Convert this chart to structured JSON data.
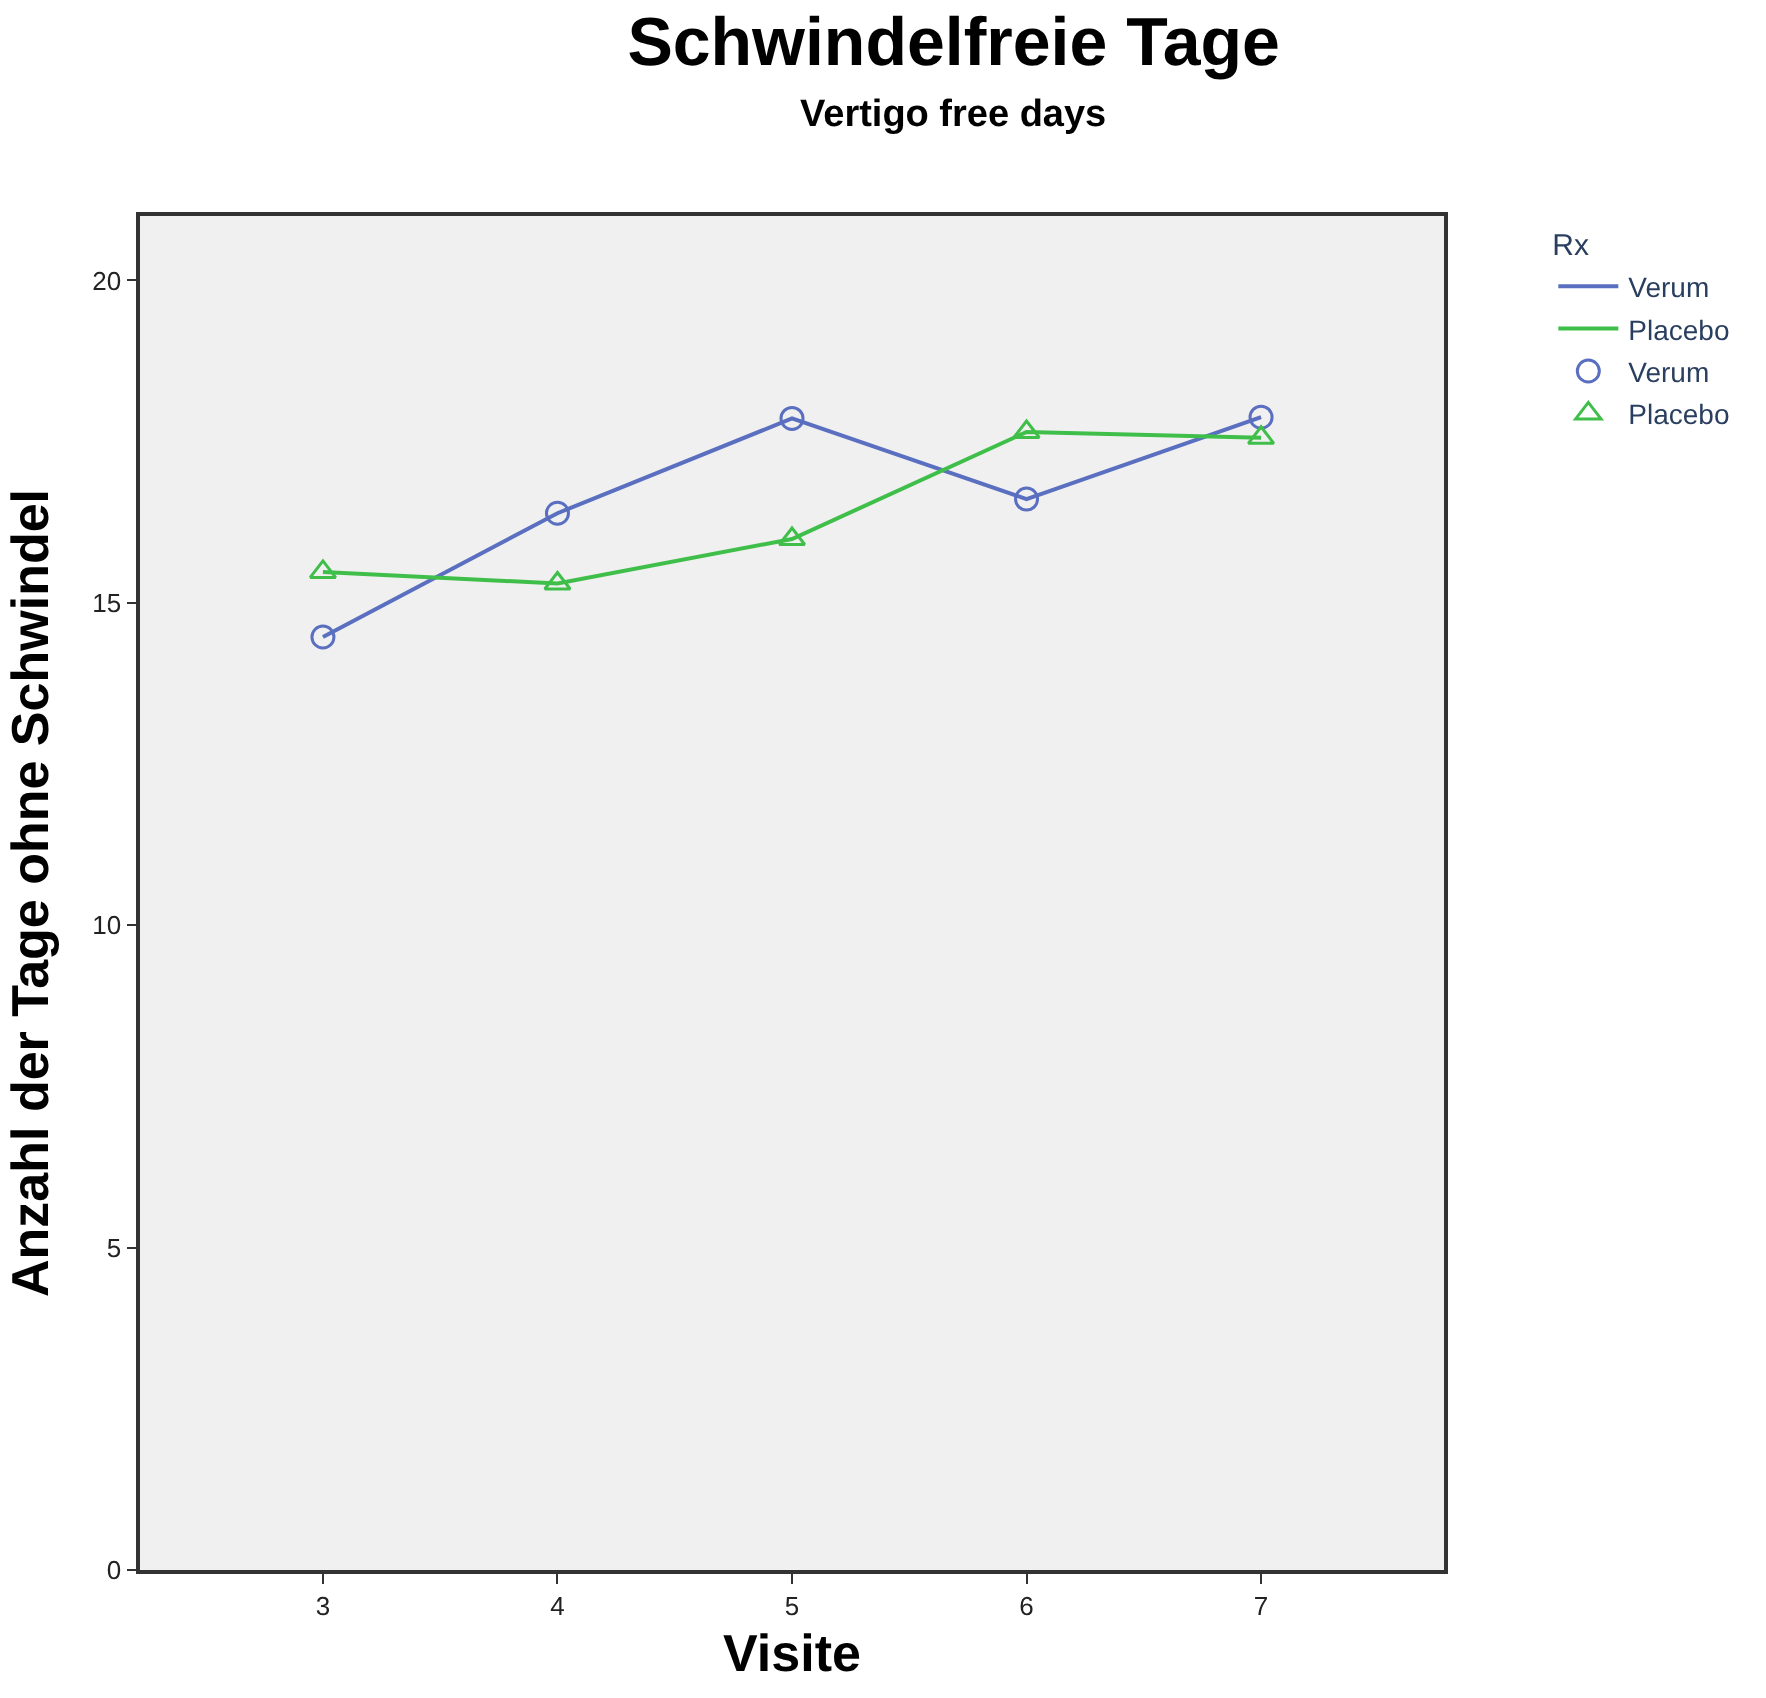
{
  "chart_data": {
    "type": "line",
    "title": "Schwindelfreie Tage",
    "subtitle": "Vertigo free days",
    "xlabel": "Visite",
    "ylabel": "Anzahl der Tage ohne Schwindel",
    "legend_title": "Rx",
    "legend": "right",
    "grid": false,
    "x": [
      3,
      4,
      5,
      6,
      7
    ],
    "xlim": [
      2.22,
      7.78
    ],
    "xticks": [
      3,
      4,
      5,
      6,
      7
    ],
    "ylim": [
      0,
      21
    ],
    "yticks": [
      0,
      5,
      10,
      15,
      20
    ],
    "series": [
      {
        "name": "Verum",
        "marker": "none",
        "color": "#5a6fc0",
        "values": [
          14.47,
          16.39,
          17.86,
          16.61,
          17.88
        ]
      },
      {
        "name": "Placebo",
        "marker": "none",
        "color": "#3fbf4a",
        "values": [
          15.48,
          15.3,
          15.99,
          17.65,
          17.56
        ]
      },
      {
        "name": "Verum",
        "type": "scatter",
        "marker": "circle",
        "color": "#5a6fc0",
        "values": [
          14.47,
          16.39,
          17.86,
          16.61,
          17.88
        ]
      },
      {
        "name": "Placebo",
        "type": "scatter",
        "marker": "triangle",
        "color": "#3fbf4a",
        "values": [
          15.48,
          15.3,
          15.99,
          17.65,
          17.56
        ]
      }
    ]
  }
}
